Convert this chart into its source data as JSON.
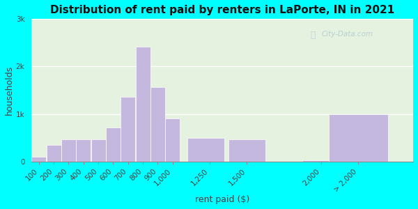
{
  "title": "Distribution of rent paid by renters in LaPorte, IN in 2021",
  "xlabel": "rent paid ($)",
  "ylabel": "households",
  "bar_color": "#c5b8de",
  "bar_edge_color": "#ffffff",
  "background_color": "#00ffff",
  "plot_bg": "#dff0d8",
  "categories": [
    "100",
    "200",
    "300",
    "400",
    "500",
    "600",
    "700",
    "800",
    "900",
    "1,000",
    "1,250",
    "1,500",
    "2,000",
    "> 2,000"
  ],
  "values": [
    100,
    350,
    460,
    460,
    460,
    710,
    1360,
    2420,
    1560,
    900,
    500,
    460,
    30,
    1000
  ],
  "bar_lefts": [
    50,
    150,
    250,
    350,
    450,
    550,
    650,
    750,
    850,
    950,
    1100,
    1375,
    1875,
    2050
  ],
  "bar_widths": [
    100,
    100,
    100,
    100,
    100,
    100,
    100,
    100,
    100,
    100,
    250,
    250,
    200,
    400
  ],
  "xtick_positions": [
    100,
    200,
    300,
    400,
    500,
    600,
    700,
    800,
    900,
    1000,
    1250,
    1500,
    2000,
    2250
  ],
  "xtick_labels": [
    "100",
    "200",
    "300",
    "400",
    "500",
    "600",
    "700",
    "800",
    "900",
    "1,000",
    "1,250",
    "1,500",
    "2,000",
    "> 2,000"
  ],
  "ylim": [
    0,
    3000
  ],
  "yticks": [
    0,
    1000,
    2000,
    3000
  ],
  "ytick_labels": [
    "0",
    "1k",
    "2k",
    "3k"
  ],
  "xlim_left": 50,
  "xlim_right": 2620,
  "watermark": "City-Data.com",
  "title_fontsize": 11,
  "axis_label_fontsize": 9,
  "tick_fontsize": 7.5
}
